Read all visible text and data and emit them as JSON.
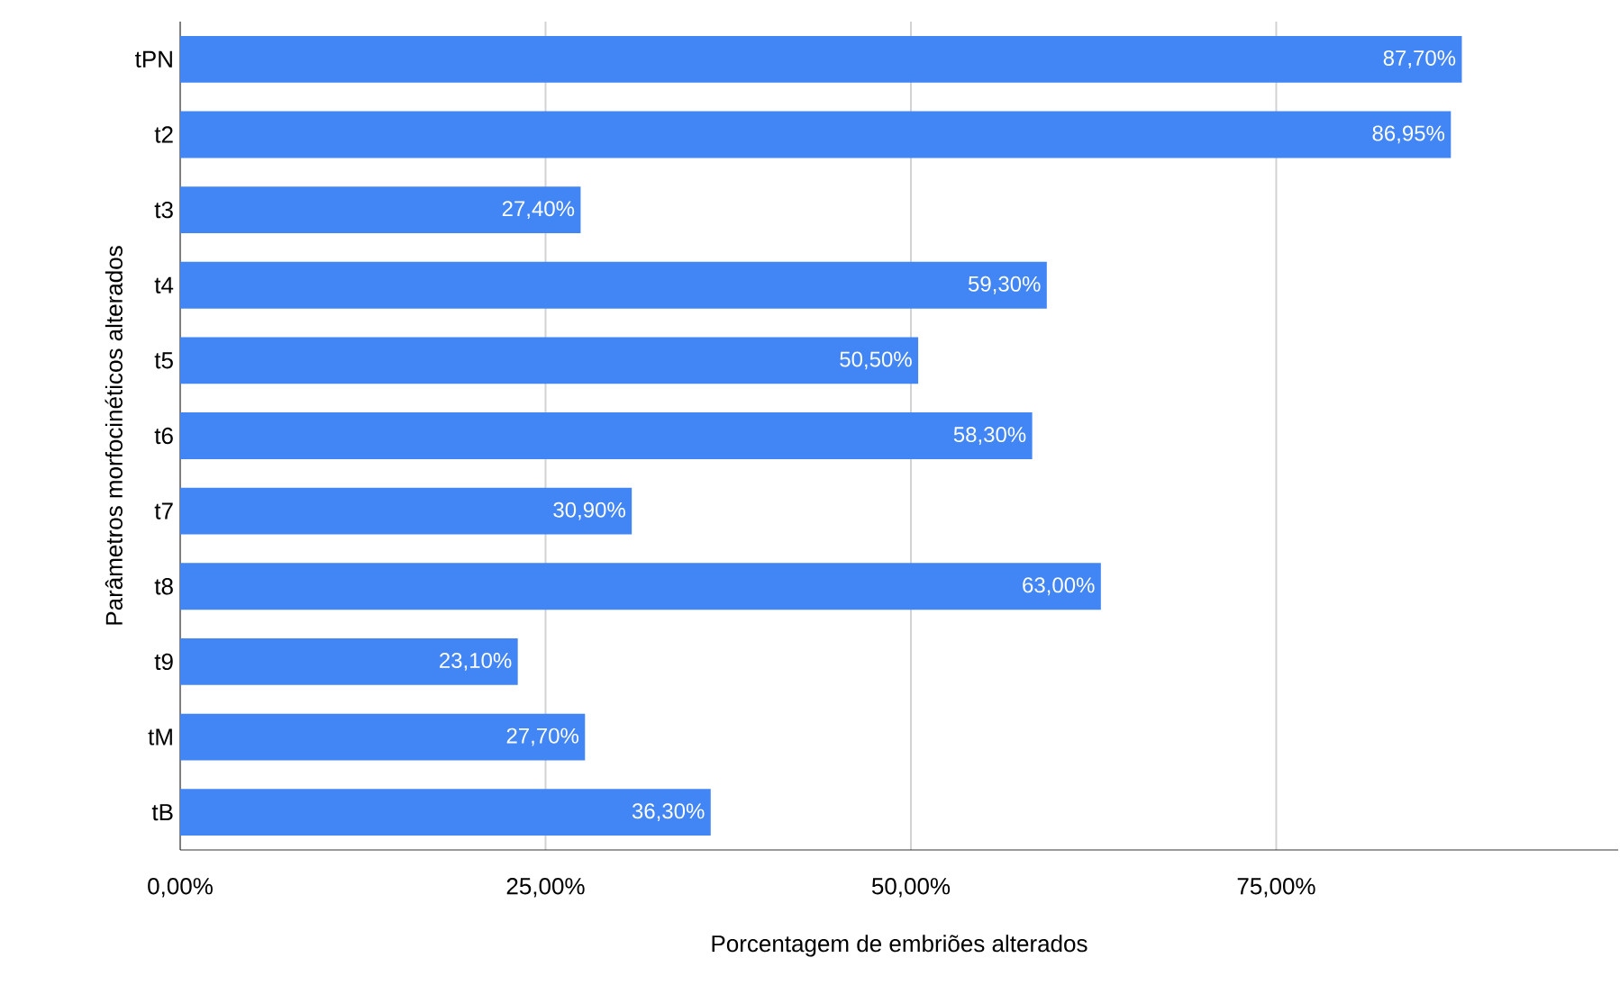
{
  "chart_data": {
    "type": "bar",
    "orientation": "horizontal",
    "xlabel": "Porcentagem de embriões alterados",
    "ylabel": "Parâmetros morfocinéticos alterados",
    "categories": [
      "tPN",
      "t2",
      "t3",
      "t4",
      "t5",
      "t6",
      "t7",
      "t8",
      "t9",
      "tM",
      "tB"
    ],
    "values": [
      87.7,
      86.95,
      27.4,
      59.3,
      50.5,
      58.3,
      30.9,
      63.0,
      23.1,
      27.7,
      36.3
    ],
    "value_labels": [
      "87,70%",
      "86,95%",
      "27,40%",
      "59,30%",
      "50,50%",
      "58,30%",
      "30,90%",
      "63,00%",
      "23,10%",
      "27,70%",
      "36,30%"
    ],
    "color": "#4285f4",
    "xlim": [
      0,
      98.4
    ],
    "xticks": [
      {
        "value": 0,
        "label": "0,00%"
      },
      {
        "value": 25,
        "label": "25,00%"
      },
      {
        "value": 50,
        "label": "50,00%"
      },
      {
        "value": 75,
        "label": "75,00%"
      }
    ],
    "grid": "x"
  }
}
